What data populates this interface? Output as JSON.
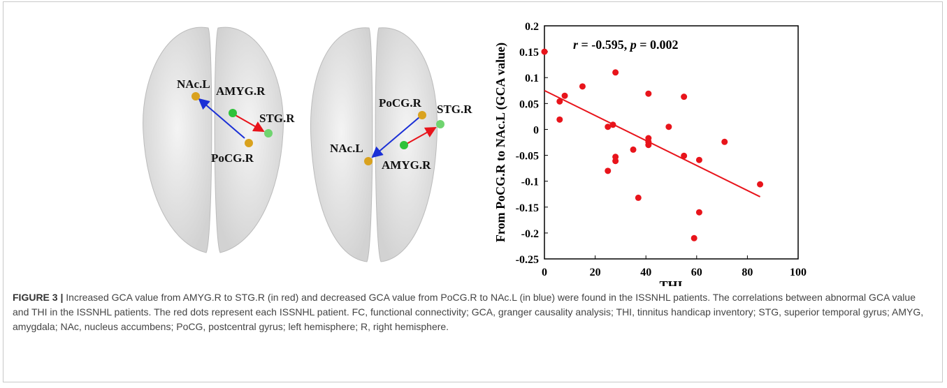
{
  "brains": [
    {
      "labels": [
        "NAc.L",
        "AMYG.R",
        "STG.R",
        "PoCG.R"
      ]
    },
    {
      "labels": [
        "PoCG.R",
        "STG.R",
        "NAc.L",
        "AMYG.R"
      ]
    }
  ],
  "chart_data": {
    "type": "scatter",
    "x_label": "THI",
    "y_label": "From PoCG.R to NAc.L (GCA value)",
    "annotation": [
      "r",
      " = -0.595, ",
      "p",
      " = 0.002"
    ],
    "color": "#e8141b",
    "x": [
      0,
      15,
      28,
      6,
      8,
      6,
      25,
      27,
      28,
      28,
      25,
      35,
      37,
      41,
      41,
      41,
      41,
      49,
      55,
      55,
      61,
      71,
      61,
      59,
      85
    ],
    "values": [
      0.15,
      0.083,
      0.11,
      0.054,
      0.065,
      0.019,
      0.005,
      0.009,
      -0.053,
      -0.061,
      -0.08,
      -0.039,
      -0.132,
      0.069,
      -0.017,
      -0.024,
      -0.03,
      0.005,
      0.063,
      -0.051,
      -0.059,
      -0.024,
      -0.16,
      -0.21,
      -0.106
    ],
    "fit_line": {
      "x": [
        0,
        85
      ],
      "y": [
        0.075,
        -0.13
      ]
    },
    "xlim": [
      0,
      100
    ],
    "xticks": [
      0,
      20,
      40,
      60,
      80,
      100
    ],
    "ylim": [
      -0.25,
      0.2
    ],
    "yticks": [
      0.2,
      0.15,
      0.1,
      0.05,
      0,
      -0.05,
      -0.1,
      -0.15,
      -0.2,
      -0.25
    ]
  },
  "caption": {
    "label": "FIGURE 3 |",
    "text": " Increased GCA value from AMYG.R to STG.R (in red) and decreased GCA value from PoCG.R to NAc.L (in blue) were found in the ISSNHL patients. The correlations between abnormal GCA value and THI in the ISSNHL patients. The red dots represent each ISSNHL patient. FC, functional connectivity; GCA, granger causality analysis; THI, tinnitus handicap inventory; STG, superior temporal gyrus; AMYG, amygdala; NAc, nucleus accumbens; PoCG, postcentral gyrus; left hemisphere; R, right hemisphere."
  }
}
